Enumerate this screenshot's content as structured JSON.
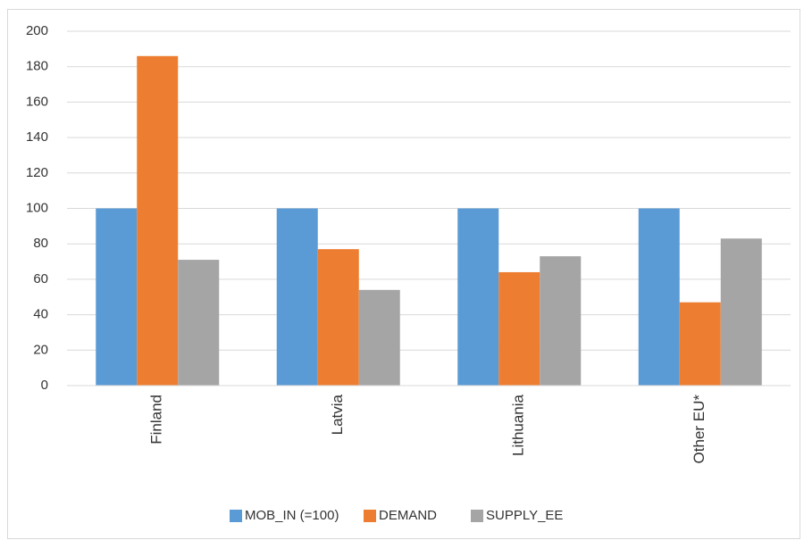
{
  "chart_data": {
    "type": "bar",
    "categories": [
      "Finland",
      "Latvia",
      "Lithuania",
      "Other EU*"
    ],
    "series": [
      {
        "name": "MOB_IN (=100)",
        "color": "#5b9bd5",
        "values": [
          100,
          100,
          100,
          100
        ]
      },
      {
        "name": "DEMAND",
        "color": "#ed7d31",
        "values": [
          186,
          77,
          64,
          47
        ]
      },
      {
        "name": "SUPPLY_EE",
        "color": "#a5a5a5",
        "values": [
          71,
          54,
          73,
          83
        ]
      }
    ],
    "ylim": [
      0,
      200
    ],
    "yticks": [
      0,
      20,
      40,
      60,
      80,
      100,
      120,
      140,
      160,
      180,
      200
    ],
    "grid": true,
    "legend": "bottom"
  }
}
